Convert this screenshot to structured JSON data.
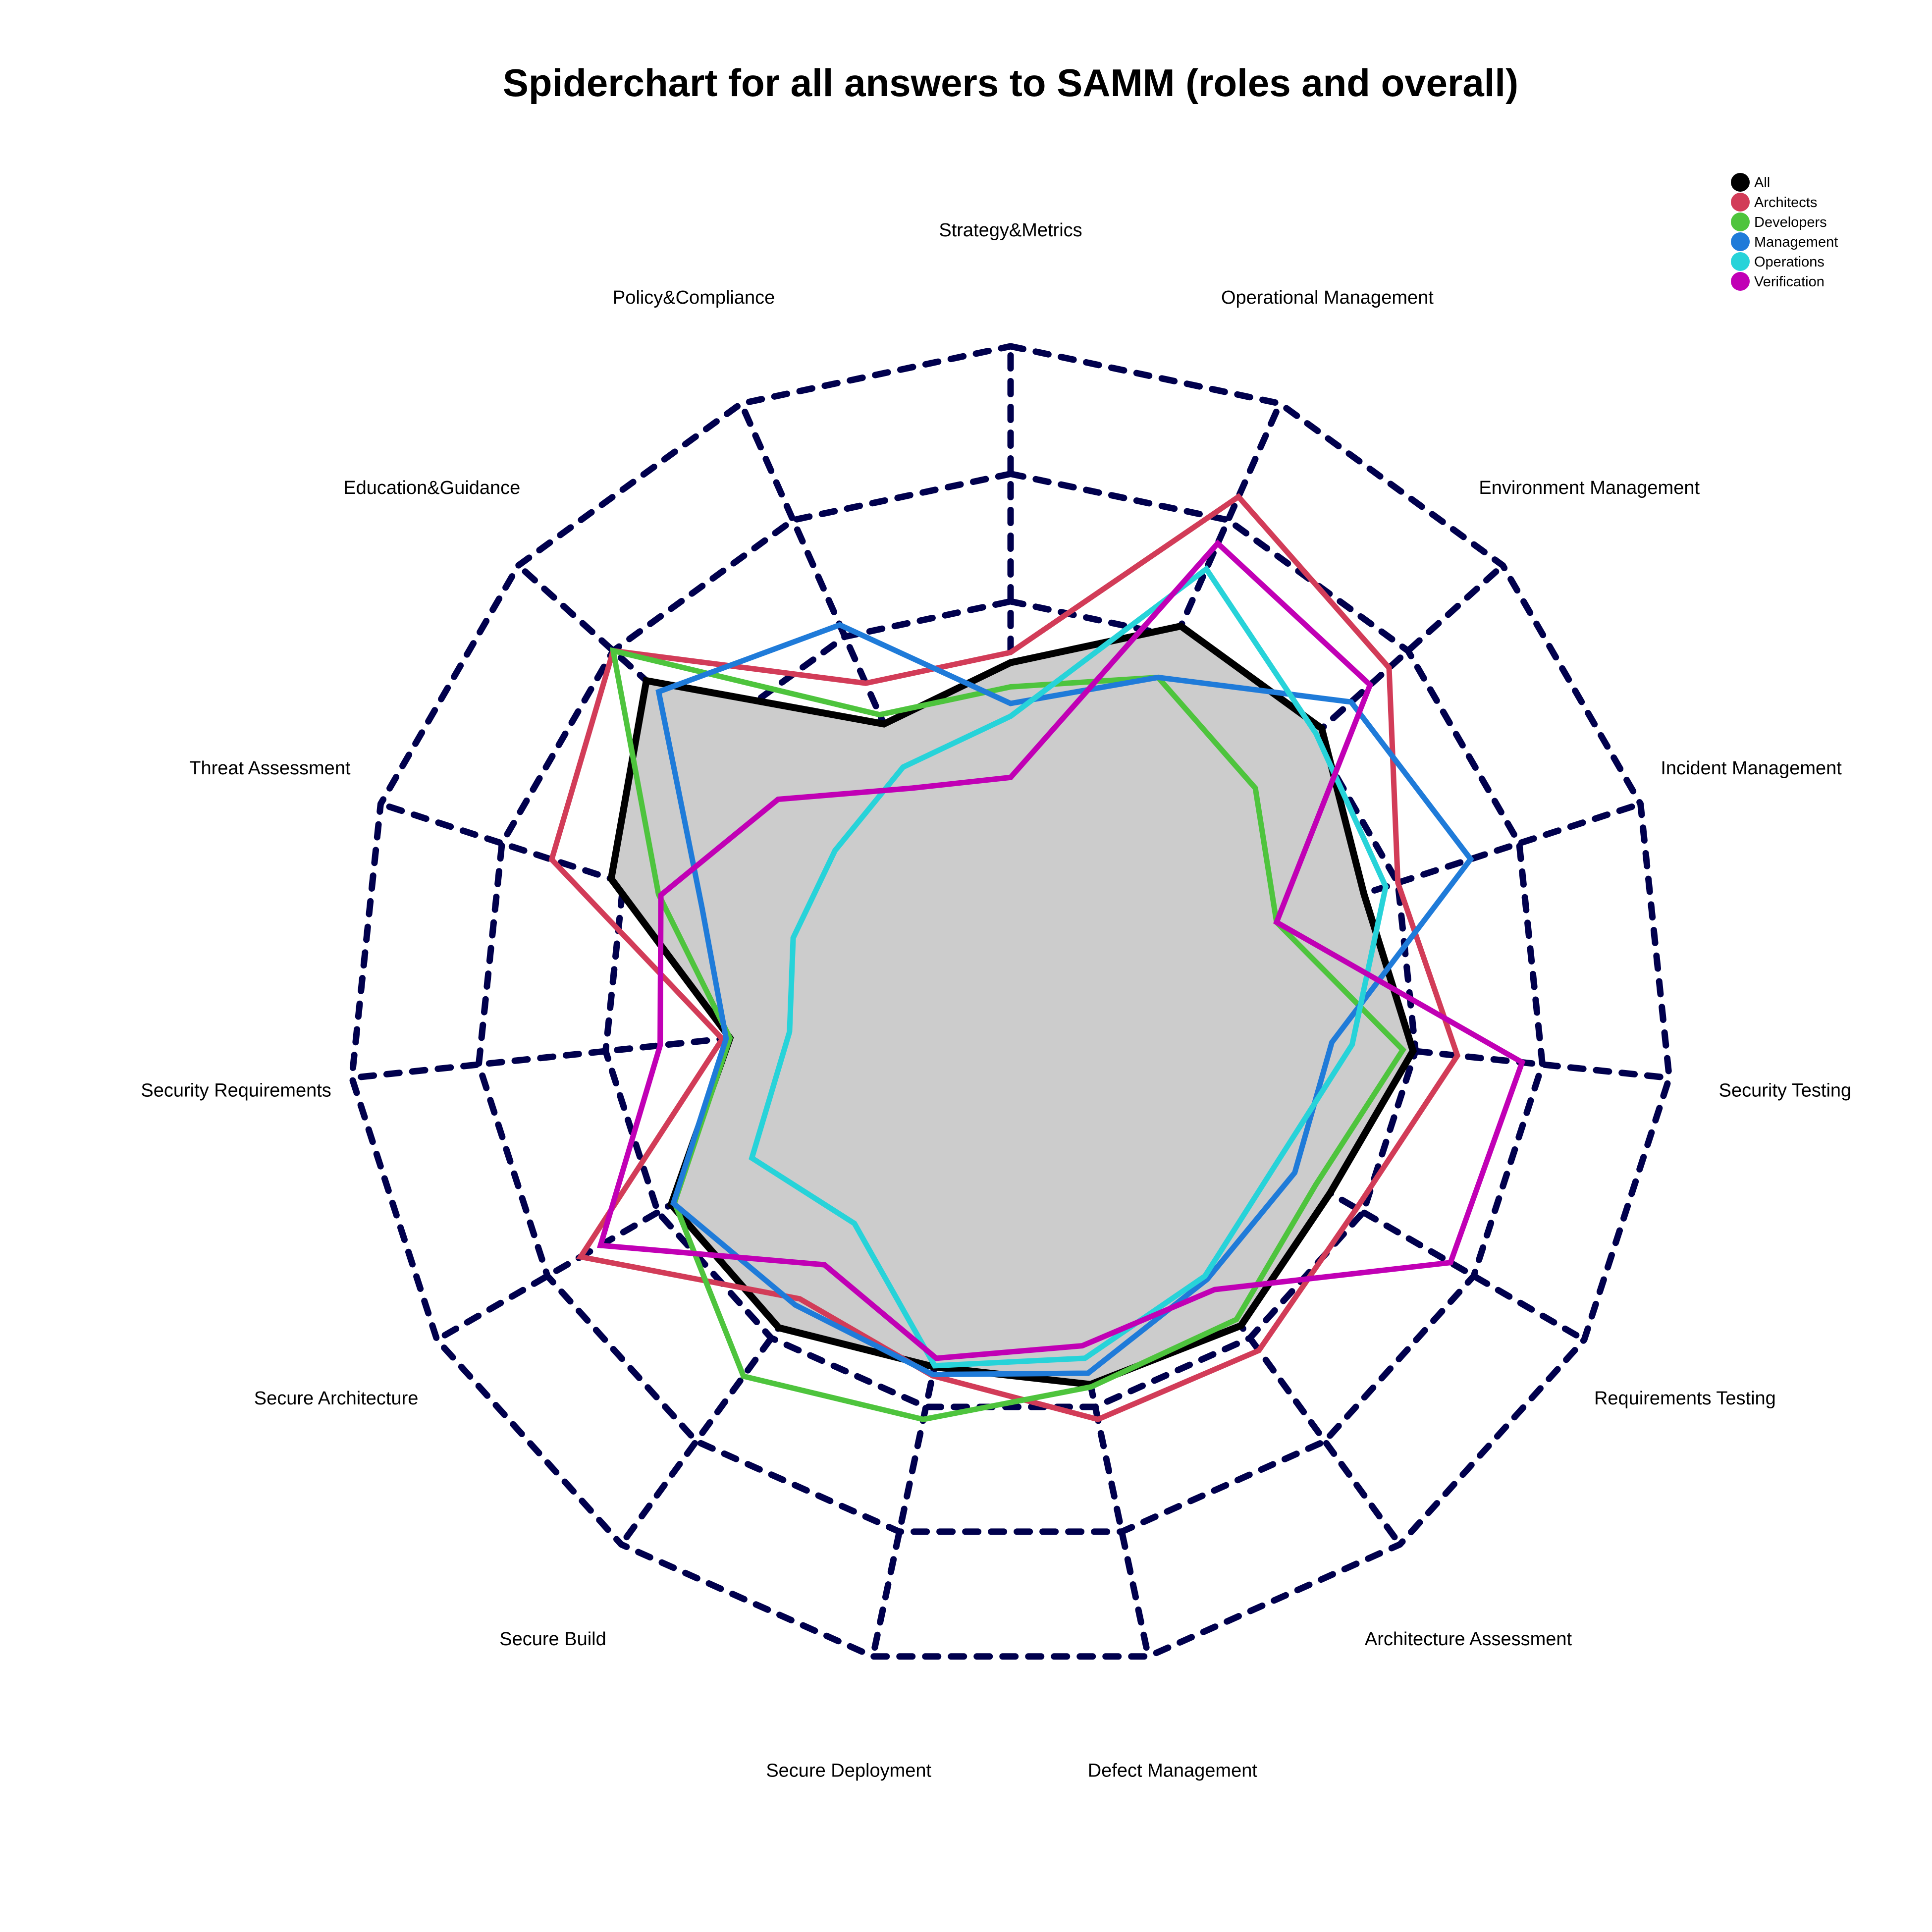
{
  "chart_data": {
    "type": "radar",
    "title": "Spiderchart for all answers to SAMM (roles and overall)",
    "axes": [
      "Strategy&Metrics",
      "Operational Management",
      "Environment Management",
      "Incident Management",
      "Security Testing",
      "Requirements Testing",
      "Architecture Assessment",
      "Defect Management",
      "Secure Deployment",
      "Secure Build",
      "Secure Architecture",
      "Security Requirements",
      "Threat Assessment",
      "Education&Guidance",
      "Policy&Compliance"
    ],
    "rlim": [
      -1,
      3
    ],
    "grid_levels": [
      0,
      1,
      2,
      3
    ],
    "grid_style": "dashed",
    "grid_color": "#00004d",
    "legend_position": "top-right",
    "filled_series": "All",
    "fill_color": "#cccccc",
    "series": [
      {
        "name": "All",
        "color": "#000000",
        "values": [
          0.52,
          1.09,
          1.09,
          0.72,
          0.98,
          0.7,
          0.88,
          0.82,
          0.68,
          0.9,
          0.88,
          0.02,
          1.1,
          1.65,
          0.25
        ]
      },
      {
        "name": "Architects",
        "color": "#d23c58",
        "values": [
          0.6,
          2.2,
          1.8,
          1.0,
          1.33,
          0.94,
          1.12,
          1.1,
          0.75,
          0.62,
          1.7,
          0.08,
          1.59,
          2.0,
          0.6
        ]
      },
      {
        "name": "Developers",
        "color": "#4ec43d",
        "values": [
          0.33,
          0.65,
          0.39,
          0.0,
          0.9,
          0.57,
          0.82,
          0.84,
          1.1,
          1.37,
          0.85,
          0.02,
          0.71,
          2.0,
          0.33
        ]
      },
      {
        "name": "Management",
        "color": "#1f7bd9",
        "values": [
          0.2,
          0.65,
          1.4,
          1.6,
          0.34,
          0.38,
          0.43,
          0.73,
          0.74,
          0.68,
          0.86,
          0.05,
          0.35,
          1.52,
          1.1
        ]
      },
      {
        "name": "Operations",
        "color": "#27d3d9",
        "values": [
          0.1,
          1.58,
          1.03,
          0.9,
          0.5,
          0.22,
          0.4,
          0.61,
          0.67,
          -0.11,
          0.15,
          -0.45,
          -0.4,
          -0.34,
          -0.12
        ]
      },
      {
        "name": "Verification",
        "color": "#c100b5",
        "values": [
          -0.38,
          1.8,
          1.6,
          0.0,
          1.84,
          1.79,
          0.53,
          0.51,
          0.61,
          0.29,
          1.52,
          0.57,
          0.69,
          0.26,
          -0.3
        ]
      }
    ]
  }
}
